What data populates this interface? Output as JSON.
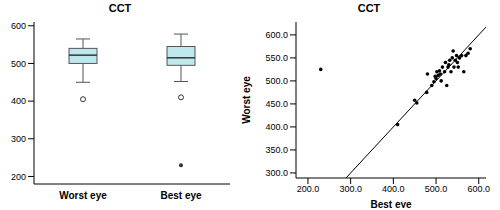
{
  "chart_data": [
    {
      "type": "box",
      "title": "CCT",
      "categories": [
        "Worst eye",
        "Best eye"
      ],
      "whisker_low": [
        450,
        452
      ],
      "q1": [
        500,
        495
      ],
      "median": [
        522,
        515
      ],
      "q3": [
        540,
        545
      ],
      "whisker_high": [
        565,
        578
      ],
      "outliers": [
        [
          405
        ],
        [
          410
        ]
      ],
      "extreme_outliers": [
        [],
        [
          230
        ]
      ],
      "color": "#bfe7ee",
      "ylim": [
        180,
        610
      ],
      "yticks": [
        200,
        300,
        400,
        500,
        600
      ]
    },
    {
      "type": "scatter",
      "title": "CCT",
      "x_label": "Best eye",
      "y_label": "Worst eye",
      "x": [
        230,
        410,
        450,
        455,
        478,
        480,
        490,
        495,
        498,
        500,
        502,
        505,
        508,
        510,
        512,
        515,
        520,
        522,
        525,
        528,
        530,
        532,
        535,
        538,
        540,
        542,
        545,
        548,
        550,
        552,
        555,
        560,
        565,
        570,
        575,
        580
      ],
      "y": [
        525,
        405,
        458,
        452,
        475,
        515,
        490,
        498,
        510,
        505,
        520,
        512,
        522,
        515,
        500,
        530,
        520,
        540,
        490,
        530,
        535,
        545,
        520,
        550,
        565,
        530,
        545,
        555,
        540,
        530,
        550,
        555,
        520,
        555,
        560,
        570
      ],
      "color": "#000000",
      "xlim": [
        172,
        617
      ],
      "xticks": [
        {
          "value": 200,
          "label": "200.0"
        },
        {
          "value": 300,
          "label": "300.0"
        },
        {
          "value": 400,
          "label": "400.0"
        },
        {
          "value": 500,
          "label": "500.0"
        },
        {
          "value": 600,
          "label": "600.0"
        }
      ],
      "ylim": [
        289,
        628
      ],
      "yticks": [
        {
          "value": 300,
          "label": "300.0"
        },
        {
          "value": 350,
          "label": "350.0"
        },
        {
          "value": 400,
          "label": "400.0"
        },
        {
          "value": 450,
          "label": "450.0"
        },
        {
          "value": 500,
          "label": "500.0"
        },
        {
          "value": 550,
          "label": "550.0"
        },
        {
          "value": 600,
          "label": "600.0"
        }
      ]
    }
  ]
}
